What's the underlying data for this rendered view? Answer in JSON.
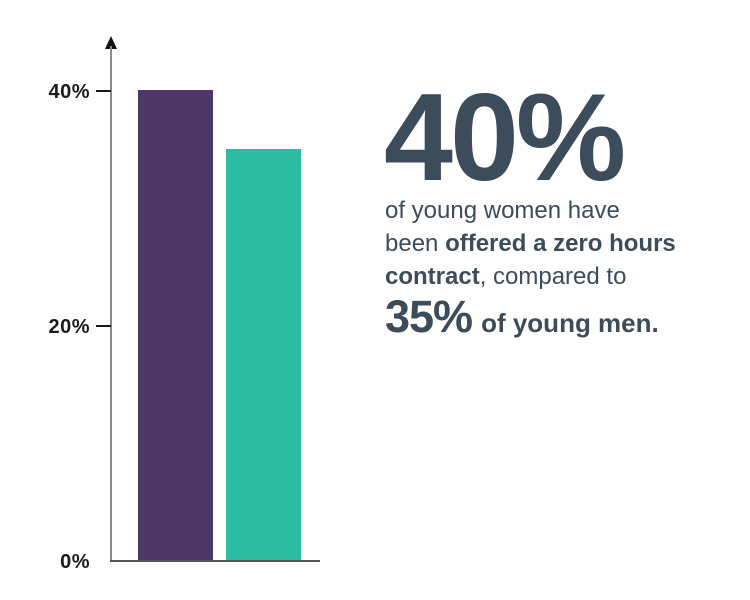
{
  "colors": {
    "purple": "#4d3766",
    "teal": "#2cbca1",
    "slate": "#3d4c5a",
    "axis_gray": "#8a8a8a",
    "baseline_gray": "#565656",
    "tick_black": "#1a1a1a"
  },
  "chart_data": {
    "type": "bar",
    "categories": [
      "young women",
      "young men"
    ],
    "values": [
      40,
      35
    ],
    "bar_colors": [
      "#4d3766",
      "#2cbca1"
    ],
    "title": "",
    "xlabel": "",
    "ylabel": "",
    "ylim": [
      0,
      44
    ],
    "yticks": [
      {
        "value": 0,
        "label": "0%"
      },
      {
        "value": 20,
        "label": "20%"
      },
      {
        "value": 40,
        "label": "40%"
      }
    ],
    "grid": false,
    "legend": "none",
    "y_axis_arrow": true
  },
  "callout": {
    "headline": "40%",
    "segments": [
      {
        "text": "of young women have been ",
        "bold": false
      },
      {
        "text": "offered a zero hours contract",
        "bold": true
      },
      {
        "text": ", compared to",
        "bold": false
      }
    ],
    "stat2_value": "35%",
    "stat2_rest": "of young men."
  }
}
